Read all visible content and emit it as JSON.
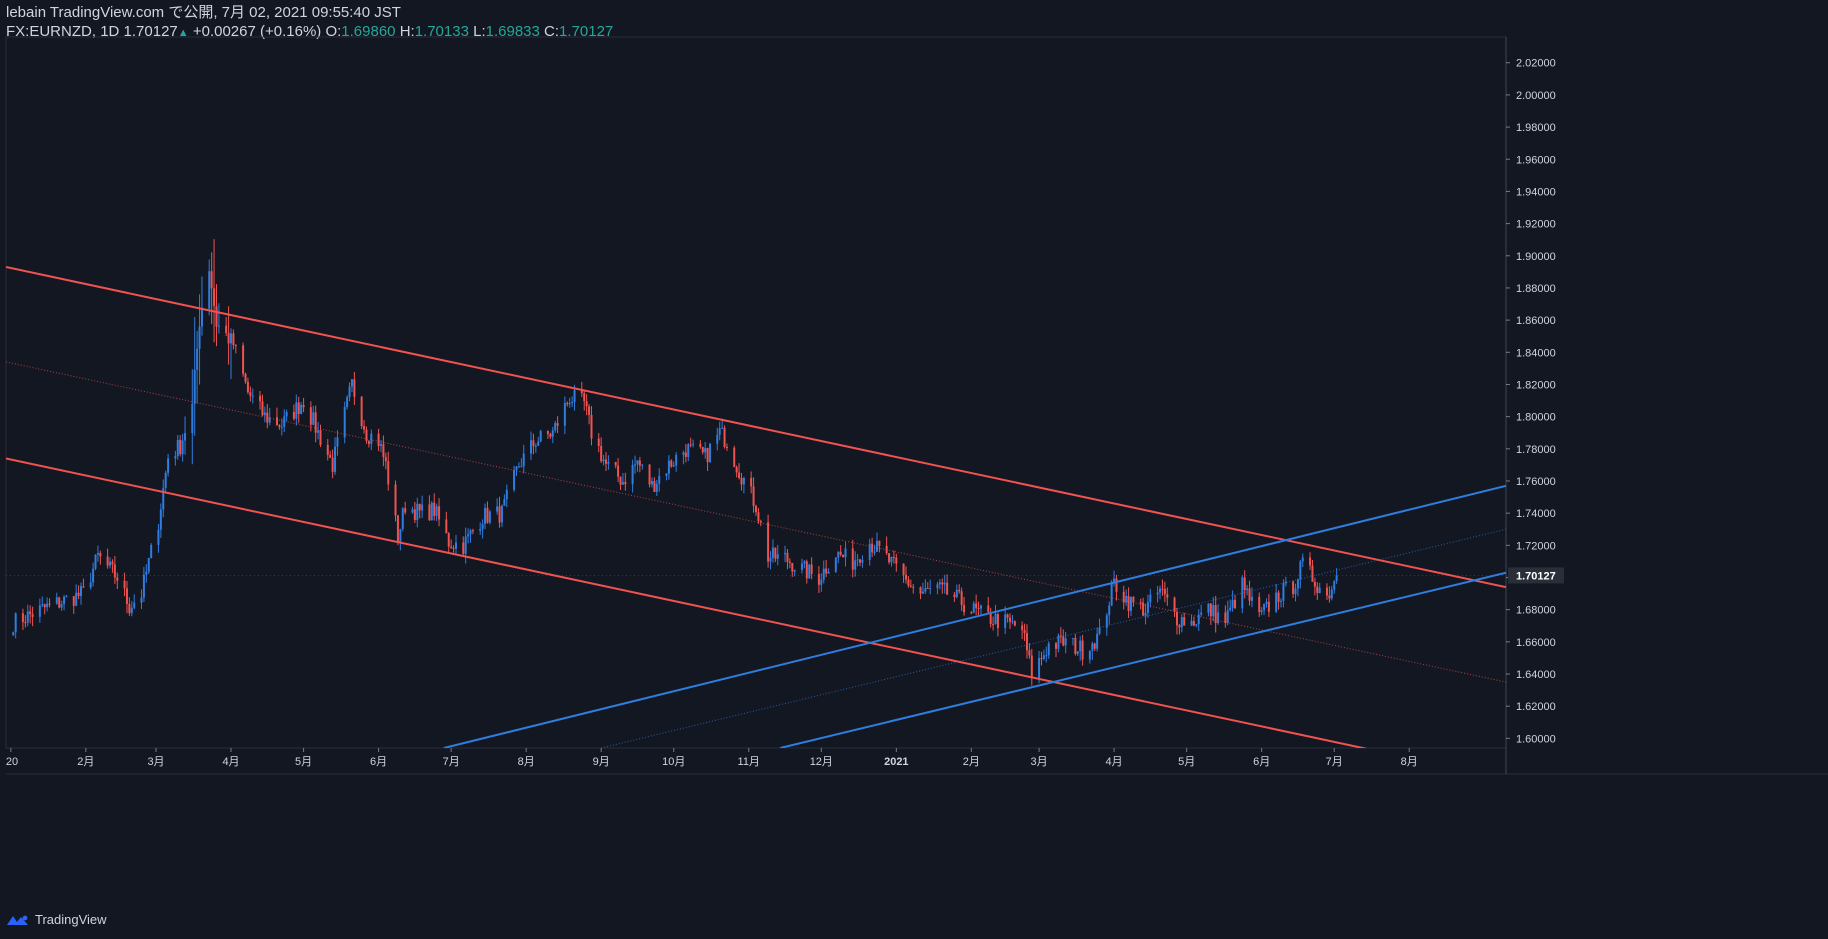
{
  "header": {
    "publish_line": "lebain TradingView.com で公開, 7月 02, 2021 09:55:40 JST",
    "symbol": "FX:EURNZD",
    "timeframe": "1D",
    "last": "1.70127",
    "change": "+0.00267 (+0.16%)",
    "o_label": "O:",
    "o": "1.69860",
    "h_label": "H:",
    "h": "1.70133",
    "l_label": "L:",
    "l": "1.69833",
    "c_label": "C:",
    "c": "1.70127"
  },
  "footer": {
    "brand": "TradingView"
  },
  "colors": {
    "background": "#131722",
    "bull": "#2f7ddf",
    "bear": "#ef5350",
    "channel_red": "#f05350",
    "channel_blue": "#2f7ddf",
    "text": "#d1d4dc"
  },
  "chart_data": {
    "type": "candlestick",
    "symbol": "FX:EURNZD",
    "ylim": [
      1.594,
      2.036
    ],
    "y_ticks": [
      "1.60000",
      "1.62000",
      "1.64000",
      "1.66000",
      "1.68000",
      "1.70000",
      "1.72000",
      "1.74000",
      "1.76000",
      "1.78000",
      "1.80000",
      "1.82000",
      "1.84000",
      "1.86000",
      "1.88000",
      "1.90000",
      "1.92000",
      "1.94000",
      "1.96000",
      "1.98000",
      "2.00000",
      "2.02000"
    ],
    "current_price": "1.70127",
    "x_tick_labels": [
      "20",
      "2月",
      "3月",
      "4月",
      "5月",
      "6月",
      "7月",
      "8月",
      "9月",
      "10月",
      "11月",
      "12月",
      "2021",
      "2月",
      "3月",
      "4月",
      "5月",
      "6月",
      "7月",
      "8月"
    ],
    "month_starts": [
      "2020-01-01",
      "2020-02-01",
      "2020-03-01",
      "2020-04-01",
      "2020-05-01",
      "2020-06-01",
      "2020-07-01",
      "2020-08-01",
      "2020-09-01",
      "2020-10-01",
      "2020-11-01",
      "2020-12-01",
      "2021-01-01",
      "2021-02-01",
      "2021-03-01",
      "2021-04-01",
      "2021-05-01",
      "2021-06-01",
      "2021-07-01",
      "2021-08-01"
    ],
    "x_range": [
      "2019-12-30",
      "2021-09-10"
    ],
    "series": [
      {
        "name": "Close",
        "close_keypoints": [
          [
            "2020-01-02",
            1.672
          ],
          [
            "2020-01-15",
            1.681
          ],
          [
            "2020-01-31",
            1.69
          ],
          [
            "2020-02-06",
            1.713
          ],
          [
            "2020-02-14",
            1.7
          ],
          [
            "2020-02-19",
            1.682
          ],
          [
            "2020-02-24",
            1.69
          ],
          [
            "2020-03-02",
            1.735
          ],
          [
            "2020-03-06",
            1.775
          ],
          [
            "2020-03-11",
            1.782
          ],
          [
            "2020-03-16",
            1.806
          ],
          [
            "2020-03-19",
            1.86
          ],
          [
            "2020-03-23",
            1.893
          ],
          [
            "2020-03-26",
            1.858
          ],
          [
            "2020-04-02",
            1.845
          ],
          [
            "2020-04-08",
            1.815
          ],
          [
            "2020-04-15",
            1.8
          ],
          [
            "2020-04-22",
            1.795
          ],
          [
            "2020-05-01",
            1.81
          ],
          [
            "2020-05-07",
            1.79
          ],
          [
            "2020-05-13",
            1.77
          ],
          [
            "2020-05-21",
            1.82
          ],
          [
            "2020-05-27",
            1.79
          ],
          [
            "2020-06-01",
            1.785
          ],
          [
            "2020-06-04",
            1.77
          ],
          [
            "2020-06-09",
            1.725
          ],
          [
            "2020-06-12",
            1.745
          ],
          [
            "2020-06-18",
            1.74
          ],
          [
            "2020-06-24",
            1.742
          ],
          [
            "2020-06-30",
            1.722
          ],
          [
            "2020-07-06",
            1.72
          ],
          [
            "2020-07-14",
            1.738
          ],
          [
            "2020-07-22",
            1.74
          ],
          [
            "2020-07-29",
            1.77
          ],
          [
            "2020-08-05",
            1.785
          ],
          [
            "2020-08-12",
            1.79
          ],
          [
            "2020-08-19",
            1.812
          ],
          [
            "2020-08-25",
            1.808
          ],
          [
            "2020-08-28",
            1.79
          ],
          [
            "2020-09-03",
            1.77
          ],
          [
            "2020-09-10",
            1.76
          ],
          [
            "2020-09-16",
            1.772
          ],
          [
            "2020-09-22",
            1.757
          ],
          [
            "2020-09-29",
            1.77
          ],
          [
            "2020-10-06",
            1.78
          ],
          [
            "2020-10-14",
            1.775
          ],
          [
            "2020-10-20",
            1.79
          ],
          [
            "2020-10-23",
            1.785
          ],
          [
            "2020-10-27",
            1.77
          ],
          [
            "2020-11-04",
            1.745
          ],
          [
            "2020-11-09",
            1.713
          ],
          [
            "2020-11-16",
            1.712
          ],
          [
            "2020-11-23",
            1.705
          ],
          [
            "2020-11-30",
            1.7
          ],
          [
            "2020-12-07",
            1.715
          ],
          [
            "2020-12-14",
            1.71
          ],
          [
            "2020-12-21",
            1.722
          ],
          [
            "2020-12-28",
            1.712
          ],
          [
            "2021-01-05",
            1.698
          ],
          [
            "2021-01-11",
            1.69
          ],
          [
            "2021-01-18",
            1.693
          ],
          [
            "2021-01-25",
            1.688
          ],
          [
            "2021-02-01",
            1.68
          ],
          [
            "2021-02-08",
            1.675
          ],
          [
            "2021-02-15",
            1.672
          ],
          [
            "2021-02-22",
            1.668
          ],
          [
            "2021-02-26",
            1.64
          ],
          [
            "2021-03-05",
            1.658
          ],
          [
            "2021-03-12",
            1.66
          ],
          [
            "2021-03-19",
            1.655
          ],
          [
            "2021-03-26",
            1.664
          ],
          [
            "2021-04-01",
            1.697
          ],
          [
            "2021-04-07",
            1.685
          ],
          [
            "2021-04-14",
            1.68
          ],
          [
            "2021-04-20",
            1.692
          ],
          [
            "2021-04-27",
            1.675
          ],
          [
            "2021-05-03",
            1.672
          ],
          [
            "2021-05-10",
            1.68
          ],
          [
            "2021-05-17",
            1.673
          ],
          [
            "2021-05-24",
            1.695
          ],
          [
            "2021-05-31",
            1.675
          ],
          [
            "2021-06-07",
            1.688
          ],
          [
            "2021-06-14",
            1.695
          ],
          [
            "2021-06-18",
            1.708
          ],
          [
            "2021-06-22",
            1.7
          ],
          [
            "2021-06-28",
            1.688
          ],
          [
            "2021-07-02",
            1.70127
          ]
        ]
      }
    ],
    "annotations": [
      {
        "type": "trendline",
        "color": "red",
        "from": [
          "2019-12-30",
          1.893
        ],
        "to": [
          "2021-09-10",
          1.694
        ]
      },
      {
        "type": "trendline",
        "color": "red",
        "from": [
          "2019-12-30",
          1.774
        ],
        "to": [
          "2021-09-10",
          1.575
        ]
      },
      {
        "type": "trendline",
        "color": "red",
        "style": "dotted",
        "from": [
          "2019-12-30",
          1.834
        ],
        "to": [
          "2021-09-10",
          1.635
        ]
      },
      {
        "type": "trendline",
        "color": "blue",
        "from": [
          "2020-06-28",
          1.594
        ],
        "to": [
          "2021-09-10",
          1.757
        ]
      },
      {
        "type": "trendline",
        "color": "blue",
        "from": [
          "2020-11-14",
          1.594
        ],
        "to": [
          "2021-09-10",
          1.703
        ]
      },
      {
        "type": "trendline",
        "color": "blue",
        "style": "dotted",
        "from": [
          "2020-09-01",
          1.594
        ],
        "to": [
          "2021-09-10",
          1.73
        ]
      }
    ]
  }
}
